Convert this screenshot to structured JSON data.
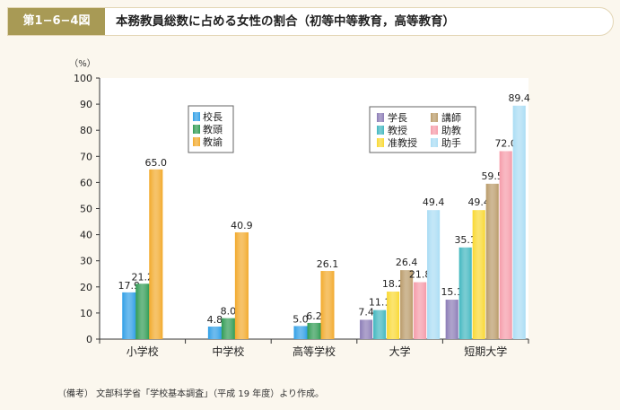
{
  "header": {
    "figure_label": "第1−6−4図",
    "title": "本務教員総数に占める女性の割合（初等中等教育，高等教育）"
  },
  "note": "（備考） 文部科学省「学校基本調査」（平成 19 年度）より作成。",
  "chart_data": {
    "type": "bar",
    "unit_label": "（%）",
    "ylim": [
      0,
      100
    ],
    "yticks": [
      0,
      10,
      20,
      30,
      40,
      50,
      60,
      70,
      80,
      90,
      100
    ],
    "categories": [
      "小学校",
      "中学校",
      "高等学校",
      "大学",
      "短期大学"
    ],
    "groups": [
      {
        "category": "小学校",
        "bars": [
          {
            "series": "校長",
            "value": 17.9
          },
          {
            "series": "教頭",
            "value": 21.2
          },
          {
            "series": "教諭",
            "value": 65.0
          }
        ]
      },
      {
        "category": "中学校",
        "bars": [
          {
            "series": "校長",
            "value": 4.8
          },
          {
            "series": "教頭",
            "value": 8.0
          },
          {
            "series": "教諭",
            "value": 40.9
          }
        ]
      },
      {
        "category": "高等学校",
        "bars": [
          {
            "series": "校長",
            "value": 5.0
          },
          {
            "series": "教頭",
            "value": 6.2
          },
          {
            "series": "教諭",
            "value": 26.1
          }
        ]
      },
      {
        "category": "大学",
        "bars": [
          {
            "series": "学長",
            "value": 7.4
          },
          {
            "series": "教授",
            "value": 11.1
          },
          {
            "series": "准教授",
            "value": 18.2
          },
          {
            "series": "講師",
            "value": 26.4
          },
          {
            "series": "助教",
            "value": 21.8
          },
          {
            "series": "助手",
            "value": 49.4
          }
        ]
      },
      {
        "category": "短期大学",
        "bars": [
          {
            "series": "学長",
            "value": 15.1
          },
          {
            "series": "教授",
            "value": 35.1
          },
          {
            "series": "准教授",
            "value": 49.4
          },
          {
            "series": "講師",
            "value": 59.5
          },
          {
            "series": "助教",
            "value": 72.0
          },
          {
            "series": "助手",
            "value": 89.4
          }
        ]
      }
    ],
    "legends": [
      {
        "position": "upper-left",
        "items": [
          "校長",
          "教頭",
          "教諭"
        ]
      },
      {
        "position": "upper-right",
        "items": [
          "学長",
          "講師",
          "教授",
          "助教",
          "准教授",
          "助手"
        ]
      }
    ],
    "colors": {
      "校長": "#2e9ee6",
      "教頭": "#2e9a52",
      "教諭": "#f2a92a",
      "学長": "#8a7ab5",
      "教授": "#3fb6bf",
      "准教授": "#f9d82f",
      "講師": "#b99a68",
      "助教": "#f59aa8",
      "助手": "#a9dcf4"
    },
    "grid": false
  }
}
